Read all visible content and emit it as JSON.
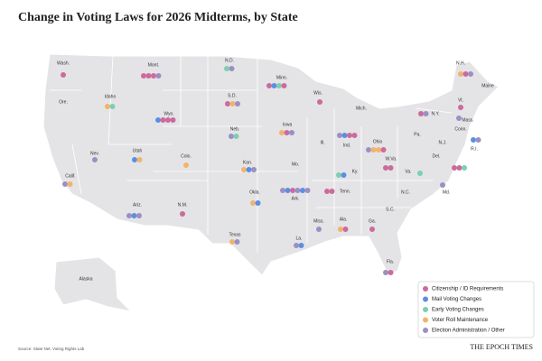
{
  "title": "Change in Voting Laws for 2026 Midterms, by State",
  "states": [
    {
      "label": "Wash."
    },
    {
      "label": "Mont."
    },
    {
      "label": "N.D."
    },
    {
      "label": "Minn."
    },
    {
      "label": "Wis."
    },
    {
      "label": "Ore."
    },
    {
      "label": "Idaho"
    },
    {
      "label": "Wyo."
    },
    {
      "label": "S.D."
    },
    {
      "label": "Mich."
    },
    {
      "label": "N.Y."
    },
    {
      "label": "N.H."
    },
    {
      "label": "Maine"
    },
    {
      "label": "Vt."
    },
    {
      "label": "Mass."
    },
    {
      "label": "Conn."
    },
    {
      "label": "R.I."
    },
    {
      "label": "Nev."
    },
    {
      "label": "Utah"
    },
    {
      "label": "Colo."
    },
    {
      "label": "Neb."
    },
    {
      "label": "Iowa"
    },
    {
      "label": "Ill."
    },
    {
      "label": "Ind."
    },
    {
      "label": "Ohio"
    },
    {
      "label": "Pa."
    },
    {
      "label": "N.J."
    },
    {
      "label": "Del."
    },
    {
      "label": "W.Va."
    },
    {
      "label": "Va."
    },
    {
      "label": "Ky."
    },
    {
      "label": "Kan."
    },
    {
      "label": "Calif."
    },
    {
      "label": "Mo."
    },
    {
      "label": "Okla."
    },
    {
      "label": "Ark."
    },
    {
      "label": "Tenn."
    },
    {
      "label": "N.C."
    },
    {
      "label": "S.C."
    },
    {
      "label": "Ariz."
    },
    {
      "label": "N.M."
    },
    {
      "label": "Texas"
    },
    {
      "label": "Miss."
    },
    {
      "label": "Ala."
    },
    {
      "label": "Ga."
    },
    {
      "label": "La."
    },
    {
      "label": "Fla."
    },
    {
      "label": "Alaska"
    },
    {
      "label": "Md."
    }
  ],
  "legend": {
    "items": [
      {
        "label": "Citizenship / ID Requirements",
        "color": "#cc6b9b"
      },
      {
        "label": "Mail Voting Changes",
        "color": "#5b8fe0"
      },
      {
        "label": "Early Voting Changes",
        "color": "#7ccfb0"
      },
      {
        "label": "Voter Roll Maintenance",
        "color": "#f2b36b"
      },
      {
        "label": "Election Administration / Other",
        "color": "#9b8fc4"
      }
    ]
  },
  "source": "Source: State Net; Voting Rights Lab",
  "logo": "THE EPOCH TIMES"
}
